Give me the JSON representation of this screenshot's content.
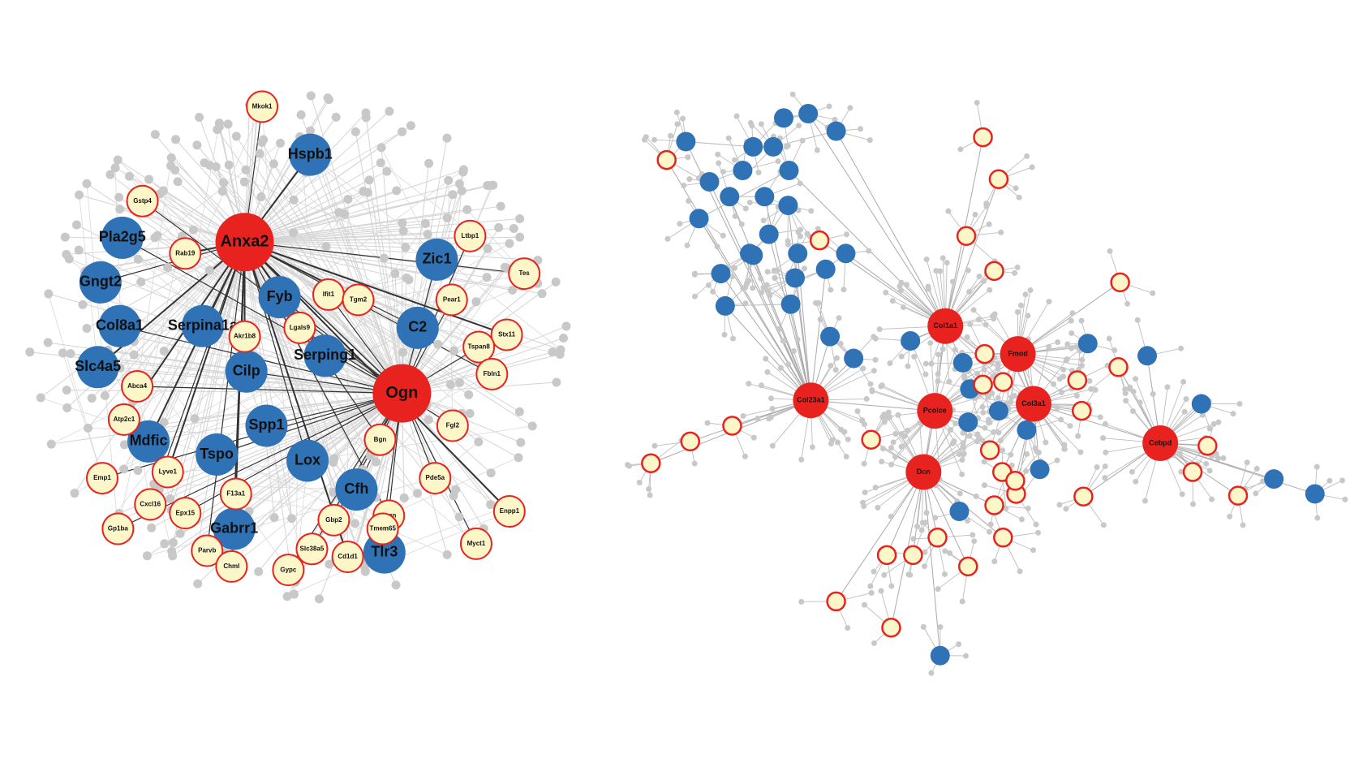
{
  "left_network": {
    "hub_genes": [
      "Anxa2",
      "Ogn"
    ],
    "blue_genes": [
      "Hspb1",
      "Pla2g5",
      "Gngt2",
      "Col8a1",
      "Slc4a5",
      "Fyb",
      "Serpina1a",
      "Cilp",
      "Serping1",
      "Zic1",
      "C2",
      "Spp1",
      "Mdfic",
      "Tspo",
      "Lox",
      "Cfh",
      "Gabrr1",
      "Tlr3"
    ],
    "yellow_genes": [
      "Mkok1",
      "Gstp4",
      "Rab19",
      "Ifit1",
      "Tgm2",
      "Lgals9",
      "Akr1b8",
      "Ltbp1",
      "Tes",
      "Pear1",
      "Stx11",
      "Tspan8",
      "Fbln1",
      "Abca4",
      "Atp2c1",
      "Fgl2",
      "Bgn",
      "Emp1",
      "Lyve1",
      "Pde5a",
      "Cxcl16",
      "Epx15",
      "F13a1",
      "Gbp2",
      "Srgn",
      "Tmem65",
      "Enpp1",
      "Gp1ba",
      "Parvb",
      "Slc38a5",
      "Cd1d1",
      "Myct1",
      "Chml",
      "Gypc"
    ]
  },
  "right_network": {
    "hub_genes": [
      "Col1a1",
      "Fmod",
      "Col23a1",
      "Pcolce",
      "Col3a1",
      "Cebpd",
      "Dcn"
    ]
  }
}
